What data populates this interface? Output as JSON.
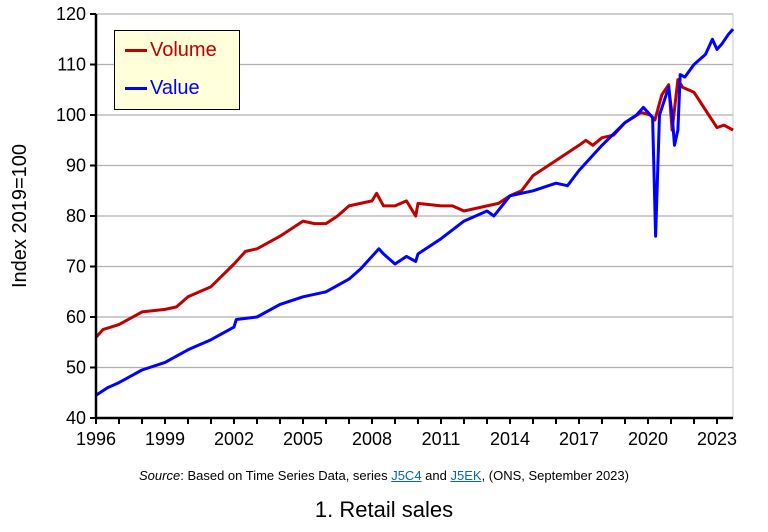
{
  "chart_data": {
    "type": "line",
    "title": "1. Retail sales",
    "ylabel": "Index 2019=100",
    "xlabel": "",
    "xlim": [
      1996,
      2023.7
    ],
    "ylim": [
      40,
      120
    ],
    "x_ticks": [
      "1996",
      "1999",
      "2002",
      "2005",
      "2008",
      "2011",
      "2014",
      "2017",
      "2020",
      "2023"
    ],
    "y_ticks": [
      "40",
      "50",
      "60",
      "70",
      "80",
      "90",
      "100",
      "110",
      "120"
    ],
    "grid": "horizontal",
    "legend_position": "top-left",
    "source": {
      "prefix": "Source",
      "text1": ": Based on Time Series Data, series ",
      "link1": "J5C4",
      "text2": " and ",
      "link2": "J5EK",
      "text3": ", (ONS, September 2023)"
    },
    "series": [
      {
        "name": "Volume",
        "color": "#c00000",
        "points": [
          [
            1996,
            56
          ],
          [
            1996.3,
            57.5
          ],
          [
            1997,
            58.5
          ],
          [
            1998,
            61
          ],
          [
            1999,
            61.5
          ],
          [
            1999.5,
            62
          ],
          [
            2000,
            64
          ],
          [
            2001,
            66
          ],
          [
            2002,
            70.5
          ],
          [
            2002.5,
            73
          ],
          [
            2003,
            73.5
          ],
          [
            2004,
            76
          ],
          [
            2005,
            79
          ],
          [
            2005.5,
            78.5
          ],
          [
            2006,
            78.5
          ],
          [
            2006.5,
            80
          ],
          [
            2007,
            82
          ],
          [
            2008,
            83
          ],
          [
            2008.2,
            84.5
          ],
          [
            2008.5,
            82
          ],
          [
            2009,
            82
          ],
          [
            2009.5,
            83
          ],
          [
            2009.9,
            80
          ],
          [
            2010,
            82.5
          ],
          [
            2011,
            82
          ],
          [
            2011.5,
            82
          ],
          [
            2012,
            81
          ],
          [
            2013,
            82
          ],
          [
            2013.5,
            82.5
          ],
          [
            2014,
            84
          ],
          [
            2014.5,
            85
          ],
          [
            2015,
            88
          ],
          [
            2016,
            91
          ],
          [
            2017,
            94
          ],
          [
            2017.3,
            95
          ],
          [
            2017.6,
            94
          ],
          [
            2018,
            95.5
          ],
          [
            2018.5,
            96
          ],
          [
            2019,
            98.5
          ],
          [
            2019.7,
            100.5
          ],
          [
            2020.1,
            100
          ],
          [
            2020.3,
            99
          ],
          [
            2020.6,
            104
          ],
          [
            2020.9,
            106
          ],
          [
            2021.05,
            97
          ],
          [
            2021.3,
            107
          ],
          [
            2021.5,
            105.5
          ],
          [
            2022,
            104.5
          ],
          [
            2022.5,
            101
          ],
          [
            2023,
            97.5
          ],
          [
            2023.3,
            98
          ],
          [
            2023.7,
            97
          ]
        ]
      },
      {
        "name": "Value",
        "color": "#0000ff",
        "points": [
          [
            1996,
            44.5
          ],
          [
            1996.5,
            46
          ],
          [
            1997,
            47
          ],
          [
            1998,
            49.5
          ],
          [
            1999,
            51
          ],
          [
            2000,
            53.5
          ],
          [
            2001,
            55.5
          ],
          [
            2002,
            58
          ],
          [
            2002.1,
            59.5
          ],
          [
            2003,
            60
          ],
          [
            2004,
            62.5
          ],
          [
            2005,
            64
          ],
          [
            2006,
            65
          ],
          [
            2007,
            67.5
          ],
          [
            2007.5,
            69.5
          ],
          [
            2008,
            72
          ],
          [
            2008.3,
            73.5
          ],
          [
            2008.5,
            72.5
          ],
          [
            2009,
            70.5
          ],
          [
            2009.5,
            72
          ],
          [
            2009.9,
            71
          ],
          [
            2010,
            72.5
          ],
          [
            2011,
            75.5
          ],
          [
            2012,
            79
          ],
          [
            2013,
            81
          ],
          [
            2013.3,
            80
          ],
          [
            2014,
            84
          ],
          [
            2015,
            85
          ],
          [
            2016,
            86.5
          ],
          [
            2016.5,
            86
          ],
          [
            2017,
            89
          ],
          [
            2018,
            94
          ],
          [
            2019,
            98.5
          ],
          [
            2019.5,
            100
          ],
          [
            2019.8,
            101.5
          ],
          [
            2020.1,
            100
          ],
          [
            2020.2,
            99.5
          ],
          [
            2020.33,
            76
          ],
          [
            2020.5,
            100
          ],
          [
            2020.9,
            105.5
          ],
          [
            2021.05,
            100
          ],
          [
            2021.15,
            94
          ],
          [
            2021.3,
            97
          ],
          [
            2021.4,
            108
          ],
          [
            2021.6,
            107.5
          ],
          [
            2022,
            110
          ],
          [
            2022.5,
            112
          ],
          [
            2022.8,
            115
          ],
          [
            2023,
            113
          ],
          [
            2023.2,
            114
          ],
          [
            2023.5,
            116
          ],
          [
            2023.7,
            117
          ]
        ]
      }
    ]
  }
}
